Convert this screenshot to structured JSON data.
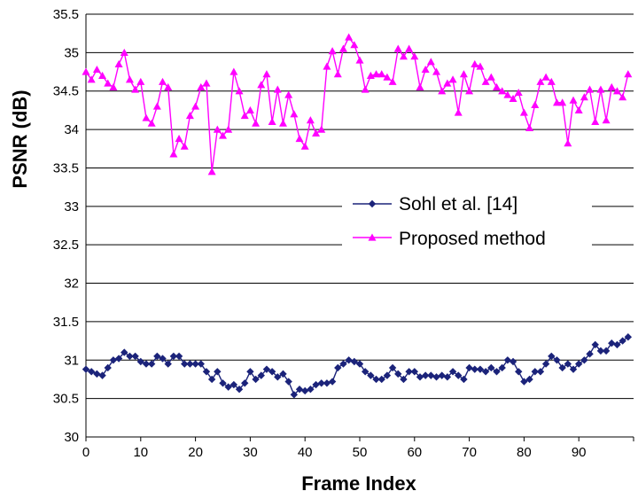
{
  "chart_data": {
    "type": "line",
    "xlabel": "Frame Index",
    "ylabel": "PSNR (dB)",
    "xlim": [
      0,
      100
    ],
    "ylim": [
      30,
      35.5
    ],
    "x_ticks": [
      0,
      10,
      20,
      30,
      40,
      50,
      60,
      70,
      80,
      90
    ],
    "y_ticks": [
      30,
      30.5,
      31,
      31.5,
      32,
      32.5,
      33,
      33.5,
      34,
      34.5,
      35,
      35.5
    ],
    "y_tick_labels": [
      "30",
      "30.5",
      "31",
      "31.5",
      "32",
      "32.5",
      "33",
      "33.5",
      "34",
      "34.5",
      "35",
      "35.5"
    ],
    "grid": "horizontal",
    "legend_position": "center-right",
    "x": [
      0,
      1,
      2,
      3,
      4,
      5,
      6,
      7,
      8,
      9,
      10,
      11,
      12,
      13,
      14,
      15,
      16,
      17,
      18,
      19,
      20,
      21,
      22,
      23,
      24,
      25,
      26,
      27,
      28,
      29,
      30,
      31,
      32,
      33,
      34,
      35,
      36,
      37,
      38,
      39,
      40,
      41,
      42,
      43,
      44,
      45,
      46,
      47,
      48,
      49,
      50,
      51,
      52,
      53,
      54,
      55,
      56,
      57,
      58,
      59,
      60,
      61,
      62,
      63,
      64,
      65,
      66,
      67,
      68,
      69,
      70,
      71,
      72,
      73,
      74,
      75,
      76,
      77,
      78,
      79,
      80,
      81,
      82,
      83,
      84,
      85,
      86,
      87,
      88,
      89,
      90,
      91,
      92,
      93,
      94,
      95,
      96,
      97,
      98,
      99
    ],
    "series": [
      {
        "name": "Sohl et al. [14]",
        "color": "#1b237a",
        "marker": "diamond",
        "values": [
          30.88,
          30.85,
          30.82,
          30.8,
          30.9,
          31.0,
          31.02,
          31.1,
          31.05,
          31.05,
          30.98,
          30.95,
          30.95,
          31.05,
          31.02,
          30.95,
          31.05,
          31.05,
          30.95,
          30.95,
          30.95,
          30.95,
          30.85,
          30.75,
          30.85,
          30.7,
          30.65,
          30.68,
          30.62,
          30.7,
          30.85,
          30.75,
          30.8,
          30.88,
          30.85,
          30.78,
          30.82,
          30.72,
          30.55,
          30.62,
          30.6,
          30.62,
          30.68,
          30.7,
          30.7,
          30.72,
          30.9,
          30.95,
          31.0,
          30.98,
          30.95,
          30.85,
          30.8,
          30.75,
          30.75,
          30.8,
          30.9,
          30.82,
          30.75,
          30.85,
          30.85,
          30.78,
          30.8,
          30.8,
          30.78,
          30.8,
          30.78,
          30.85,
          30.8,
          30.75,
          30.9,
          30.88,
          30.88,
          30.85,
          30.9,
          30.85,
          30.9,
          31.0,
          30.98,
          30.85,
          30.72,
          30.75,
          30.85,
          30.85,
          30.95,
          31.05,
          31.0,
          30.9,
          30.95,
          30.88,
          30.95,
          31.0,
          31.08,
          31.2,
          31.12,
          31.12,
          31.22,
          31.2,
          31.25,
          31.3
        ]
      },
      {
        "name": "Proposed method",
        "color": "#ff00ff",
        "marker": "triangle",
        "values": [
          34.75,
          34.65,
          34.78,
          34.7,
          34.6,
          34.55,
          34.85,
          35.0,
          34.65,
          34.52,
          34.62,
          34.15,
          34.08,
          34.3,
          34.62,
          34.55,
          33.68,
          33.88,
          33.78,
          34.18,
          34.3,
          34.55,
          34.6,
          33.45,
          34.0,
          33.92,
          34.0,
          34.75,
          34.5,
          34.18,
          34.25,
          34.08,
          34.58,
          34.72,
          34.1,
          34.52,
          34.08,
          34.45,
          34.2,
          33.88,
          33.78,
          34.12,
          33.95,
          34.0,
          34.82,
          35.02,
          34.72,
          35.05,
          35.2,
          35.1,
          34.9,
          34.52,
          34.7,
          34.72,
          34.72,
          34.68,
          34.62,
          35.05,
          34.95,
          35.05,
          34.95,
          34.55,
          34.78,
          34.88,
          34.75,
          34.5,
          34.6,
          34.65,
          34.22,
          34.72,
          34.5,
          34.85,
          34.82,
          34.62,
          34.68,
          34.55,
          34.5,
          34.45,
          34.4,
          34.48,
          34.22,
          34.02,
          34.32,
          34.62,
          34.68,
          34.62,
          34.35,
          34.35,
          33.82,
          34.38,
          34.25,
          34.42,
          34.52,
          34.1,
          34.52,
          34.12,
          34.55,
          34.5,
          34.42,
          34.72
        ]
      }
    ]
  }
}
